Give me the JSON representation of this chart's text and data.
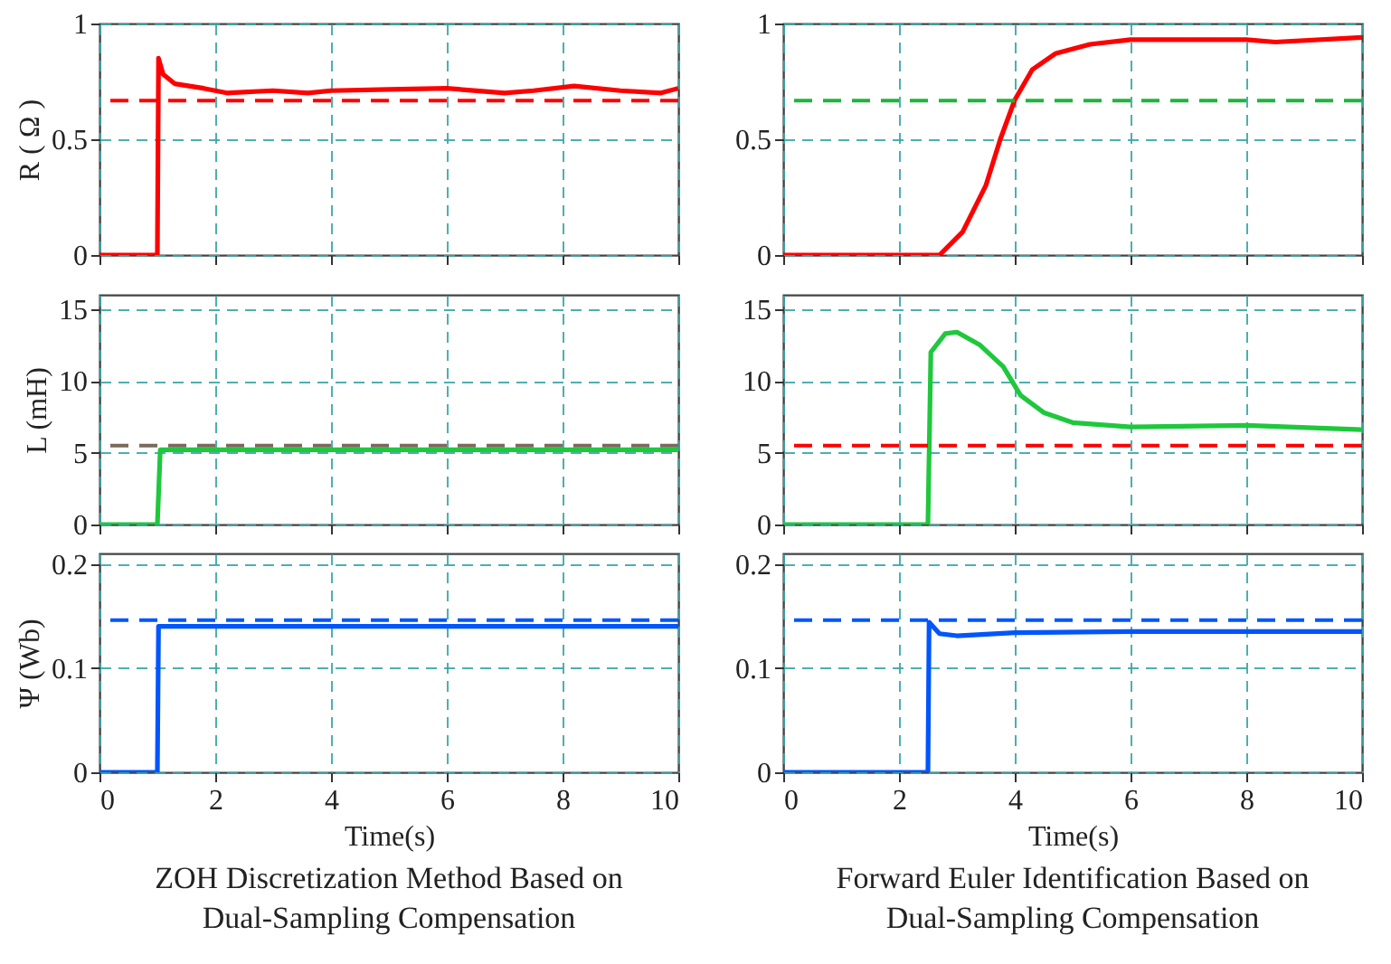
{
  "chart_data": [
    {
      "type": "line",
      "ylabel": "R ( Ω )",
      "xlim": [
        0,
        10
      ],
      "xticks": [
        0,
        2,
        4,
        6,
        8,
        10
      ],
      "ylim": [
        0,
        1
      ],
      "yticks": [
        0,
        0.5,
        1
      ],
      "grid": true,
      "tick_labels": "y",
      "line_style": "solid",
      "series": [
        {
          "color": "#ff0000",
          "x": [
            0,
            1.0,
            1.02,
            1.1,
            1.3,
            1.8,
            2.2,
            3,
            3.6,
            4,
            5,
            6,
            7,
            7.5,
            8.2,
            9,
            9.7,
            10
          ],
          "values": [
            0,
            0,
            0.85,
            0.78,
            0.74,
            0.72,
            0.7,
            0.71,
            0.7,
            0.71,
            0.715,
            0.72,
            0.7,
            0.71,
            0.73,
            0.71,
            0.7,
            0.72
          ]
        }
      ],
      "ref_lines": [
        {
          "axis": "y",
          "value": 0.667,
          "color": "#ff0000",
          "line_style": "dashed"
        }
      ]
    },
    {
      "type": "line",
      "xlim": [
        0,
        10
      ],
      "xticks": [
        0,
        2,
        4,
        6,
        8,
        10
      ],
      "ylim": [
        0,
        1
      ],
      "yticks": [
        0,
        0.5,
        1
      ],
      "grid": true,
      "tick_labels": "y",
      "line_style": "solid",
      "series": [
        {
          "color": "#ff0000",
          "x": [
            0,
            2.7,
            3.1,
            3.5,
            3.75,
            4.0,
            4.3,
            4.7,
            5.3,
            6,
            8,
            8.5,
            10
          ],
          "values": [
            0,
            0,
            0.1,
            0.3,
            0.5,
            0.67,
            0.8,
            0.87,
            0.91,
            0.93,
            0.93,
            0.92,
            0.94
          ]
        }
      ],
      "ref_lines": [
        {
          "axis": "y",
          "value": 0.667,
          "color": "#1eb43c",
          "line_style": "dashed"
        }
      ]
    },
    {
      "type": "line",
      "ylabel": "L (mH)",
      "xlim": [
        0,
        10
      ],
      "xticks": [
        0,
        2,
        4,
        6,
        8,
        10
      ],
      "ylim": [
        0,
        16
      ],
      "yticks": [
        0,
        5,
        10,
        15
      ],
      "grid": true,
      "tick_labels": "y",
      "line_style": "solid",
      "series": [
        {
          "color": "#1ec83c",
          "x": [
            0,
            1.0,
            1.05,
            10
          ],
          "values": [
            0,
            0,
            5.2,
            5.2
          ]
        }
      ],
      "ref_lines": [
        {
          "axis": "y",
          "value": 5.5,
          "color": "#7a6a5a",
          "line_style": "dashed"
        }
      ]
    },
    {
      "type": "line",
      "xlim": [
        0,
        10
      ],
      "xticks": [
        0,
        2,
        4,
        6,
        8,
        10
      ],
      "ylim": [
        0,
        16
      ],
      "yticks": [
        0,
        5,
        10,
        15
      ],
      "grid": true,
      "tick_labels": "y",
      "line_style": "solid",
      "series": [
        {
          "color": "#1ec83c",
          "x": [
            0,
            2.5,
            2.55,
            2.8,
            3,
            3.4,
            3.8,
            4.1,
            4.5,
            5,
            6,
            8,
            10
          ],
          "values": [
            0,
            0,
            12,
            13.3,
            13.4,
            12.5,
            11,
            9,
            7.8,
            7.1,
            6.8,
            6.9,
            6.6
          ]
        }
      ],
      "ref_lines": [
        {
          "axis": "y",
          "value": 5.5,
          "color": "#ff0000",
          "line_style": "dashed"
        }
      ]
    },
    {
      "type": "line",
      "xlabel": "Time(s)",
      "ylabel": "Ψ (Wb)",
      "xlim": [
        0,
        10
      ],
      "xticks": [
        0,
        2,
        4,
        6,
        8,
        10
      ],
      "ylim": [
        0,
        0.21
      ],
      "yticks": [
        0,
        0.1,
        0.2
      ],
      "grid": true,
      "line_style": "solid",
      "series": [
        {
          "color": "#0055ff",
          "x": [
            0,
            1.0,
            1.02,
            10
          ],
          "values": [
            0,
            0,
            0.14,
            0.14
          ]
        }
      ],
      "ref_lines": [
        {
          "axis": "y",
          "value": 0.146,
          "color": "#0055ff",
          "line_style": "dashed"
        }
      ],
      "annotations": [
        "ZOH Discretization Method Based on Dual-Sampling Compensation"
      ]
    },
    {
      "type": "line",
      "xlabel": "Time(s)",
      "xlim": [
        0,
        10
      ],
      "xticks": [
        0,
        2,
        4,
        6,
        8,
        10
      ],
      "ylim": [
        0,
        0.21
      ],
      "yticks": [
        0,
        0.1,
        0.2
      ],
      "grid": true,
      "line_style": "solid",
      "series": [
        {
          "color": "#0055ff",
          "x": [
            0,
            2.5,
            2.52,
            2.7,
            3,
            4,
            6,
            10
          ],
          "values": [
            0,
            0,
            0.144,
            0.133,
            0.131,
            0.134,
            0.135,
            0.135
          ]
        }
      ],
      "ref_lines": [
        {
          "axis": "y",
          "value": 0.146,
          "color": "#0055ff",
          "line_style": "dashed"
        }
      ],
      "annotations": [
        "Forward Euler Identification Based on Dual-Sampling Compensation"
      ]
    }
  ]
}
